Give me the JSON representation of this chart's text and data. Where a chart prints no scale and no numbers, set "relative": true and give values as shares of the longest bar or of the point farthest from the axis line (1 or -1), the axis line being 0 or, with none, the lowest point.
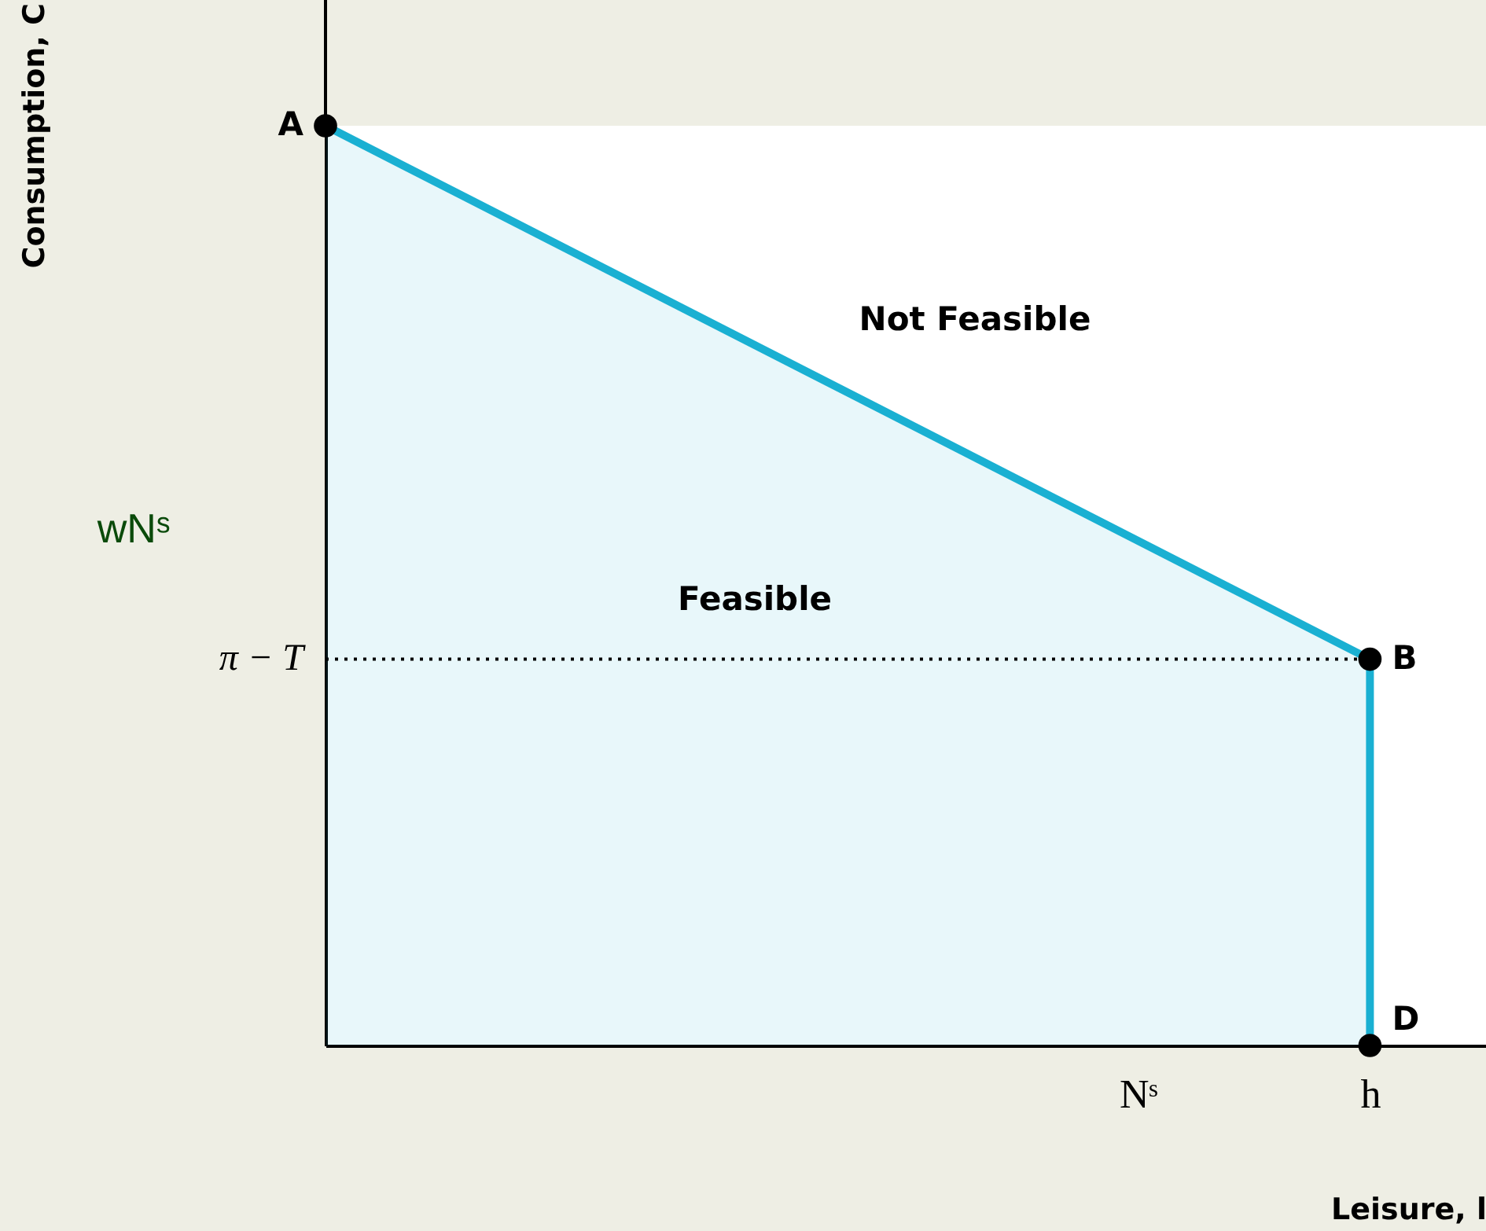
{
  "chart_data": {
    "type": "area",
    "relative": true,
    "xlabel": "Leisure, l",
    "categories": [
      null,
      null,
      null,
      null,
      null,
      null,
      null,
      "Nˢ",
      null,
      "h",
      null
    ],
    "series": [
      {
        "color": "#1ab0d2",
        "values": [
          1,
          null,
          null,
          null,
          null,
          null,
          null,
          null,
          null,
          0.42,
          null
        ],
        "marker": "circle"
      },
      {
        "type": "line",
        "color": "#000000",
        "values": [
          0.42,
          null,
          null,
          null,
          null,
          null,
          null,
          null,
          null,
          0.42,
          null
        ],
        "line_style": "dotted"
      },
      {
        "type": "scatter",
        "color": "#000000",
        "values": [
          null,
          null,
          null,
          null,
          null,
          null,
          null,
          null,
          null,
          0,
          null
        ],
        "marker": "circle"
      }
    ],
    "annotations": [
      "A",
      {
        "text": "B",
        "x": "h",
        "y": 0.42
      },
      {
        "text": "D",
        "x": "h",
        "y": 0
      },
      "π − T",
      "wNˢ",
      "Feasible",
      "Not Feasible",
      "Consumption, C"
    ],
    "grid": false
  }
}
